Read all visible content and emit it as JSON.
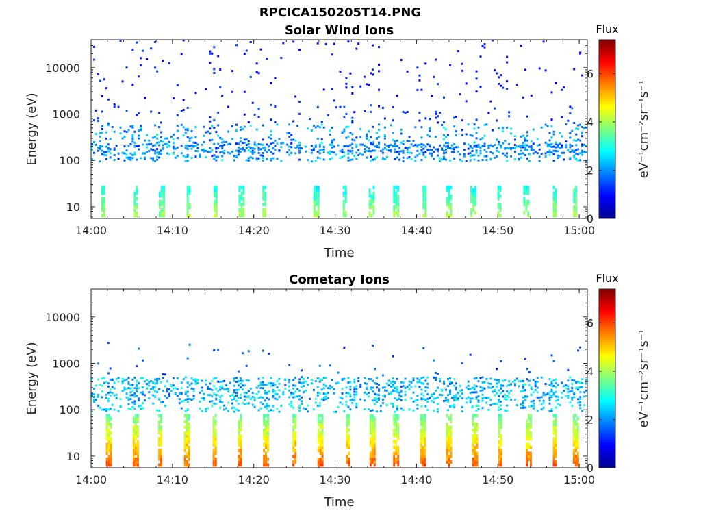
{
  "figure": {
    "title": "RPCICA150205T14.PNG"
  },
  "colormap": {
    "name": "jet",
    "stops": [
      "#00008f",
      "#0000ff",
      "#0080ff",
      "#00ffff",
      "#80ff80",
      "#ffff00",
      "#ff8000",
      "#ff0000",
      "#800000"
    ]
  },
  "chart_data": [
    {
      "type": "heatmap",
      "title": "Solar Wind Ions",
      "xlabel": "Time",
      "ylabel": "Energy (eV)",
      "y_scale": "log",
      "xlim": [
        "14:00",
        "15:01"
      ],
      "ylim": [
        5.6,
        40000
      ],
      "x_ticks": [
        "14:00",
        "14:10",
        "14:20",
        "14:30",
        "14:40",
        "14:50",
        "15:00"
      ],
      "y_ticks": [
        {
          "value": 10,
          "label": "10"
        },
        {
          "value": 100,
          "label": "100"
        },
        {
          "value": 1000,
          "label": "1000"
        },
        {
          "value": 10000,
          "label": "10000"
        }
      ],
      "grid": false,
      "colorbar": {
        "title": "Flux",
        "label": "eV⁻¹cm⁻²sr⁻¹s⁻¹",
        "range": [
          0,
          7.4
        ],
        "ticks": [
          "0",
          "2",
          "4",
          "6"
        ]
      },
      "pulse_times_min": [
        1.5,
        5.5,
        8.7,
        12,
        15.3,
        18.5,
        21.3,
        27.7,
        31.2,
        34.5,
        37.5,
        41,
        44,
        47,
        50.2,
        53.5,
        57,
        59.5
      ],
      "bands": [
        {
          "e_min": 140,
          "e_max": 230,
          "flux_mean": 1.9,
          "flux_spread": 0.5,
          "density": 0.75
        },
        {
          "e_min": 95,
          "e_max": 140,
          "flux_mean": 2.1,
          "flux_spread": 0.6,
          "density": 0.45
        },
        {
          "e_min": 230,
          "e_max": 600,
          "flux_mean": 2.0,
          "flux_spread": 0.6,
          "density": 0.25
        },
        {
          "e_min": 600,
          "e_max": 1600,
          "flux_mean": 1.3,
          "flux_spread": 0.3,
          "density": 0.06
        },
        {
          "e_min": 1600,
          "e_max": 40000,
          "flux_mean": 1.1,
          "flux_spread": 0.25,
          "density": 0.035
        }
      ],
      "low_pulses": {
        "e_min": 6,
        "e_max": 28,
        "flux_mean": 3.4,
        "flux_spread": 0.6,
        "density": 0.8
      }
    },
    {
      "type": "heatmap",
      "title": "Cometary Ions",
      "xlabel": "Time",
      "ylabel": "Energy (eV)",
      "y_scale": "log",
      "xlim": [
        "14:00",
        "15:01"
      ],
      "ylim": [
        5.6,
        40000
      ],
      "x_ticks": [
        "14:00",
        "14:10",
        "14:20",
        "14:30",
        "14:40",
        "14:50",
        "15:00"
      ],
      "y_ticks": [
        {
          "value": 10,
          "label": "10"
        },
        {
          "value": 100,
          "label": "100"
        },
        {
          "value": 1000,
          "label": "1000"
        },
        {
          "value": 10000,
          "label": "10000"
        }
      ],
      "grid": false,
      "colorbar": {
        "title": "Flux",
        "label": "eV⁻¹cm⁻²sr⁻¹s⁻¹",
        "range": [
          0,
          7.4
        ],
        "ticks": [
          "0",
          "2",
          "4",
          "6"
        ]
      },
      "pulse_times_min": [
        2.2,
        5.5,
        8.5,
        11.8,
        15.2,
        18.3,
        21.5,
        25,
        28.2,
        31.6,
        34.6,
        37.5,
        40.8,
        44,
        47.2,
        50.3,
        53.8,
        57,
        59.6
      ],
      "bands": [
        {
          "e_min": 150,
          "e_max": 500,
          "flux_mean": 2.3,
          "flux_spread": 0.6,
          "density": 0.55
        },
        {
          "e_min": 90,
          "e_max": 150,
          "flux_mean": 2.5,
          "flux_spread": 0.5,
          "density": 0.35
        },
        {
          "e_min": 500,
          "e_max": 3000,
          "flux_mean": 1.6,
          "flux_spread": 0.3,
          "density": 0.02
        }
      ],
      "low_pulses": {
        "e_min": 6,
        "e_max": 80,
        "flux_mean": 4.6,
        "flux_spread": 1.2,
        "density": 0.85
      }
    }
  ]
}
